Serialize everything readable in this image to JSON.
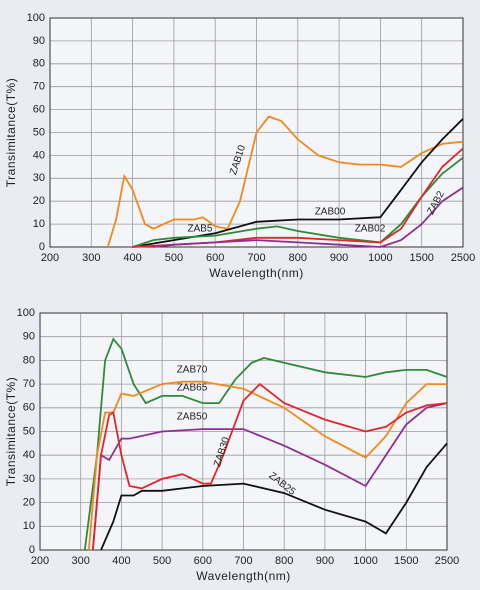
{
  "chart_data": [
    {
      "type": "line",
      "y_label": "Transimitance(T%)",
      "x_label": "Wavelength(nm)",
      "xlim": [
        200,
        2500
      ],
      "xticks": [
        200,
        300,
        400,
        500,
        600,
        700,
        800,
        900,
        1000,
        1500,
        2500
      ],
      "ylim": [
        0,
        100
      ],
      "yticks": [
        0,
        10,
        20,
        30,
        40,
        50,
        60,
        70,
        80,
        90,
        100
      ],
      "grid": true,
      "series": [
        {
          "name": "ZAB10",
          "color": "#f08a1e",
          "x": [
            340,
            360,
            380,
            400,
            430,
            450,
            500,
            550,
            570,
            600,
            630,
            660,
            700,
            730,
            760,
            800,
            850,
            900,
            950,
            1000,
            1250,
            1500,
            2000,
            2500
          ],
          "values": [
            0,
            12,
            31,
            25,
            10,
            8,
            12,
            12,
            13,
            9,
            8,
            20,
            50,
            57,
            55,
            47,
            40,
            37,
            36,
            36,
            35,
            41,
            45,
            46
          ]
        },
        {
          "name": "ZAB00",
          "color": "#111111",
          "x": [
            400,
            500,
            600,
            700,
            800,
            900,
            1000,
            1250,
            1500,
            2000,
            2500
          ],
          "values": [
            0,
            3,
            6,
            11,
            12,
            12,
            13,
            25,
            37,
            47,
            56
          ]
        },
        {
          "name": "ZAB5",
          "color": "#2e8b3a",
          "x": [
            400,
            450,
            500,
            600,
            700,
            750,
            800,
            900,
            1000,
            1250,
            1500,
            2000,
            2500
          ],
          "values": [
            0,
            3,
            4,
            5,
            8,
            9,
            7,
            4,
            2,
            10,
            22,
            32,
            39
          ]
        },
        {
          "name": "ZAB02",
          "color": "#e0262a",
          "x": [
            400,
            500,
            600,
            700,
            800,
            900,
            1000,
            1250,
            1500,
            2000,
            2500
          ],
          "values": [
            0,
            1,
            2,
            4,
            4,
            3,
            2,
            8,
            22,
            35,
            43
          ]
        },
        {
          "name": "ZAB2",
          "color": "#8e2f96",
          "x": [
            450,
            500,
            600,
            700,
            800,
            900,
            1000,
            1250,
            1500,
            2000,
            2500
          ],
          "values": [
            0,
            1,
            2,
            3,
            2,
            1,
            0,
            3,
            10,
            20,
            26
          ]
        }
      ]
    },
    {
      "type": "line",
      "y_label": "Transimitance(T%)",
      "x_label": "Wavelength(nm)",
      "xlim": [
        200,
        2500
      ],
      "xticks": [
        200,
        300,
        400,
        500,
        600,
        700,
        800,
        900,
        1000,
        1500,
        2500
      ],
      "ylim": [
        0,
        100
      ],
      "yticks": [
        0,
        10,
        20,
        30,
        40,
        50,
        60,
        70,
        80,
        90,
        100
      ],
      "grid": true,
      "series": [
        {
          "name": "ZAB70",
          "color": "#2e8b3a",
          "x": [
            310,
            340,
            360,
            380,
            400,
            430,
            460,
            500,
            550,
            600,
            640,
            680,
            720,
            750,
            800,
            900,
            1000,
            1250,
            1500,
            2000,
            2500
          ],
          "values": [
            0,
            40,
            80,
            89,
            85,
            70,
            62,
            65,
            65,
            62,
            62,
            72,
            79,
            81,
            79,
            75,
            73,
            75,
            76,
            76,
            73
          ]
        },
        {
          "name": "ZAB65",
          "color": "#f08a1e",
          "x": [
            320,
            340,
            360,
            380,
            400,
            430,
            500,
            550,
            600,
            700,
            800,
            900,
            1000,
            1250,
            1500,
            2000,
            2500
          ],
          "values": [
            0,
            40,
            58,
            58,
            66,
            65,
            70,
            71,
            71,
            68,
            60,
            48,
            39,
            48,
            62,
            70,
            70
          ]
        },
        {
          "name": "ZAB50",
          "color": "#8e2f96",
          "x": [
            330,
            350,
            370,
            400,
            420,
            500,
            600,
            700,
            800,
            900,
            1000,
            1250,
            1500,
            2000,
            2500
          ],
          "values": [
            0,
            40,
            38,
            47,
            47,
            50,
            51,
            51,
            44,
            36,
            27,
            40,
            53,
            60,
            62
          ]
        },
        {
          "name": "ZAB30",
          "color": "#e0262a",
          "x": [
            330,
            350,
            370,
            380,
            400,
            420,
            450,
            500,
            550,
            600,
            620,
            650,
            700,
            740,
            800,
            900,
            1000,
            1250,
            1500,
            2000,
            2500
          ],
          "values": [
            0,
            40,
            57,
            58,
            40,
            27,
            26,
            30,
            32,
            28,
            28,
            40,
            63,
            70,
            62,
            55,
            50,
            52,
            58,
            61,
            62
          ]
        },
        {
          "name": "ZAB25",
          "color": "#111111",
          "x": [
            350,
            380,
            400,
            430,
            450,
            500,
            550,
            600,
            700,
            800,
            900,
            1000,
            1250,
            1500,
            2000,
            2500
          ],
          "values": [
            0,
            12,
            23,
            23,
            25,
            25,
            26,
            27,
            28,
            24,
            17,
            12,
            7,
            20,
            35,
            45
          ]
        }
      ]
    }
  ]
}
